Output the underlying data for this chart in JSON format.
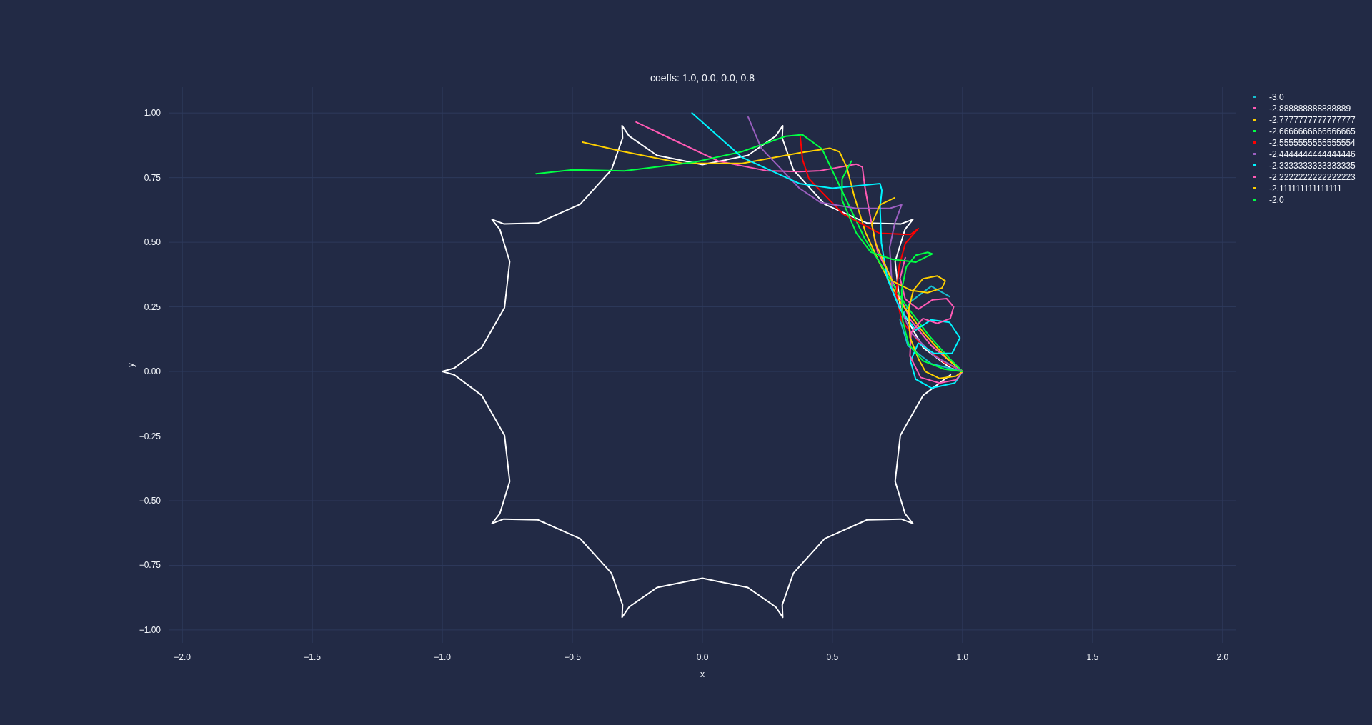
{
  "chart_data": {
    "type": "line",
    "title": "coeffs: 1.0, 0.0, 0.0, 0.8",
    "xlabel": "x",
    "ylabel": "y",
    "xlim": [
      -2.05,
      2.05
    ],
    "ylim": [
      -1.05,
      1.1
    ],
    "xticks": [
      {
        "value": -2,
        "label": "−2.0"
      },
      {
        "value": -1.5,
        "label": "−1.5"
      },
      {
        "value": -1,
        "label": "−1.0"
      },
      {
        "value": -0.5,
        "label": "−0.5"
      },
      {
        "value": 0,
        "label": "0.0"
      },
      {
        "value": 0.5,
        "label": "0.5"
      },
      {
        "value": 1,
        "label": "1.0"
      },
      {
        "value": 1.5,
        "label": "1.5"
      },
      {
        "value": 2,
        "label": "2.0"
      }
    ],
    "yticks": [
      {
        "value": -1,
        "label": "−1.00"
      },
      {
        "value": -0.75,
        "label": "−0.75"
      },
      {
        "value": -0.5,
        "label": "−0.50"
      },
      {
        "value": -0.25,
        "label": "−0.25"
      },
      {
        "value": 0,
        "label": "0.00"
      },
      {
        "value": 0.25,
        "label": "0.25"
      },
      {
        "value": 0.5,
        "label": "0.50"
      },
      {
        "value": 0.75,
        "label": "0.75"
      },
      {
        "value": 1,
        "label": "1.00"
      }
    ],
    "grid": true,
    "legend": "top right",
    "marker": "none",
    "line_style": "solid",
    "series": [
      {
        "color": "#ffffff",
        "x": [
          1,
          0.954,
          0.849,
          0.761,
          0.741,
          0.779,
          0.809,
          0.764,
          0.633,
          0.47,
          0.35,
          0.307,
          0.309,
          0.282,
          0.175,
          0,
          -0.175,
          -0.282,
          -0.309,
          -0.307,
          -0.35,
          -0.47,
          -0.633,
          -0.764,
          -0.809,
          -0.779,
          -0.741,
          -0.761,
          -0.849,
          -0.954,
          -1,
          -0.954,
          -0.849,
          -0.761,
          -0.741,
          -0.779,
          -0.809,
          -0.764,
          -0.633,
          -0.47,
          -0.35,
          -0.307,
          -0.309,
          -0.282,
          -0.175,
          0,
          0.175,
          0.282,
          0.309,
          0.307,
          0.35,
          0.47,
          0.633,
          0.764,
          0.809,
          0.779,
          0.741,
          0.761,
          0.849,
          0.954
        ],
        "values": [
          0,
          0.013,
          0.092,
          0.247,
          0.425,
          0.55,
          0.588,
          0.571,
          0.574,
          0.647,
          0.78,
          0.903,
          0.951,
          0.911,
          0.836,
          0.8,
          0.836,
          0.911,
          0.951,
          0.903,
          0.78,
          0.647,
          0.574,
          0.571,
          0.588,
          0.55,
          0.425,
          0.247,
          0.092,
          0.013,
          0,
          -0.013,
          -0.092,
          -0.247,
          -0.425,
          -0.55,
          -0.588,
          -0.571,
          -0.574,
          -0.647,
          -0.78,
          -0.903,
          -0.951,
          -0.911,
          -0.836,
          -0.8,
          -0.836,
          -0.911,
          -0.951,
          -0.903,
          -0.78,
          -0.647,
          -0.574,
          -0.571,
          -0.588,
          -0.55,
          -0.425,
          -0.247,
          -0.092,
          -0.013
        ]
      },
      {
        "name": "-3.0",
        "color": "#17becf",
        "x": [
          0.95,
          0.88,
          0.8,
          0.76,
          0.79,
          0.88,
          1
        ],
        "values": [
          0.29,
          0.33,
          0.27,
          0.2,
          0.1,
          0.03,
          0
        ]
      },
      {
        "name": "-2.888888888888889",
        "color": "#ff5ab4",
        "x": [
          -0.255,
          -0.122,
          0.061,
          0.245,
          0.373,
          0.454,
          0.592,
          0.615,
          0.624,
          0.647,
          0.674,
          0.74,
          0.8,
          0.88,
          1
        ],
        "values": [
          0.965,
          0.901,
          0.814,
          0.777,
          0.773,
          0.777,
          0.802,
          0.791,
          0.718,
          0.59,
          0.462,
          0.33,
          0.2,
          0.1,
          0
        ]
      },
      {
        "name": "-2.7777777777777777",
        "color": "#ffd000",
        "x": [
          -0.461,
          -0.323,
          -0.076,
          0.153,
          0.373,
          0.49,
          0.527,
          0.555,
          0.583,
          0.628,
          0.683,
          0.76,
          0.85,
          0.94,
          1
        ],
        "values": [
          0.887,
          0.855,
          0.805,
          0.805,
          0.846,
          0.864,
          0.85,
          0.791,
          0.681,
          0.535,
          0.416,
          0.27,
          0.15,
          0.05,
          0
        ]
      },
      {
        "name": "-2.6666666666666665",
        "color": "#00ff44",
        "x": [
          -0.64,
          -0.5,
          -0.3,
          -0.03,
          0.15,
          0.32,
          0.385,
          0.46,
          0.533,
          0.624,
          0.687,
          0.78,
          0.87,
          0.95,
          1
        ],
        "values": [
          0.765,
          0.78,
          0.776,
          0.81,
          0.85,
          0.91,
          0.916,
          0.861,
          0.707,
          0.514,
          0.413,
          0.26,
          0.14,
          0.05,
          0
        ]
      },
      {
        "name": "-2.5555555555555554",
        "color": "#ff0000",
        "x": [
          0.376,
          0.385,
          0.41,
          0.54,
          0.68,
          0.8,
          0.83,
          0.78,
          0.757,
          0.745,
          0.766,
          0.84,
          0.93,
          1
        ],
        "values": [
          0.91,
          0.82,
          0.745,
          0.61,
          0.535,
          0.53,
          0.553,
          0.495,
          0.41,
          0.3,
          0.195,
          0.105,
          0.035,
          0
        ]
      },
      {
        "name": "-2.4444444444444446",
        "color": "#9b5fc0",
        "x": [
          0.176,
          0.226,
          0.373,
          0.454,
          0.592,
          0.72,
          0.766,
          0.739,
          0.72,
          0.73,
          0.802,
          0.893,
          1
        ],
        "values": [
          0.984,
          0.864,
          0.709,
          0.654,
          0.631,
          0.631,
          0.645,
          0.571,
          0.48,
          0.314,
          0.15,
          0.059,
          0
        ]
      },
      {
        "name": "-2.3333333333333335",
        "color": "#00f5ff",
        "x": [
          -0.04,
          0.153,
          0.373,
          0.5,
          0.683,
          0.69,
          0.683,
          0.688,
          0.711,
          0.76,
          0.82,
          0.88,
          0.95,
          0.99,
          0.96,
          0.89,
          0.83,
          0.8,
          0.82,
          0.88,
          0.97,
          1
        ],
        "values": [
          1.0,
          0.828,
          0.727,
          0.709,
          0.727,
          0.7,
          0.636,
          0.498,
          0.359,
          0.24,
          0.16,
          0.2,
          0.19,
          0.13,
          0.07,
          0.07,
          0.11,
          0.04,
          -0.03,
          -0.064,
          -0.045,
          0
        ]
      },
      {
        "name": "-2.2222222222222223",
        "color": "#ff5ab4",
        "x": [
          0.78,
          0.76,
          0.78,
          0.83,
          0.884,
          0.939,
          0.966,
          0.953,
          0.903,
          0.848,
          0.802,
          0.798,
          0.839,
          0.912,
          0.976,
          1
        ],
        "values": [
          0.44,
          0.36,
          0.28,
          0.241,
          0.277,
          0.282,
          0.25,
          0.205,
          0.186,
          0.205,
          0.15,
          0.059,
          -0.023,
          -0.045,
          -0.032,
          0
        ]
      },
      {
        "name": "-2.111111111111111",
        "color": "#ffd000",
        "x": [
          0.739,
          0.683,
          0.651,
          0.665,
          0.73,
          0.802,
          0.866,
          0.921,
          0.934,
          0.903,
          0.848,
          0.811,
          0.793,
          0.798,
          0.83,
          0.857,
          0.912,
          0.975,
          1
        ],
        "values": [
          0.672,
          0.645,
          0.571,
          0.498,
          0.35,
          0.314,
          0.305,
          0.323,
          0.35,
          0.37,
          0.359,
          0.314,
          0.241,
          0.132,
          0.05,
          0,
          -0.027,
          -0.018,
          0
        ]
      },
      {
        "name": "-2.0",
        "color": "#00ff44",
        "x": [
          0.573,
          0.537,
          0.537,
          0.592,
          0.647,
          0.729,
          0.82,
          0.884,
          0.866,
          0.821,
          0.784,
          0.766,
          0.77,
          0.793,
          0.848,
          0.93,
          1
        ],
        "values": [
          0.814,
          0.745,
          0.663,
          0.535,
          0.462,
          0.434,
          0.423,
          0.455,
          0.461,
          0.45,
          0.405,
          0.314,
          0.195,
          0.105,
          0.041,
          0.009,
          0
        ]
      }
    ]
  }
}
